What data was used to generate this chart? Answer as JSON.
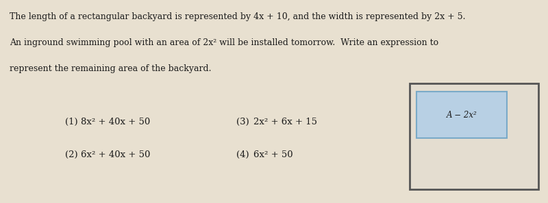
{
  "background_color": "#e8e0d0",
  "title_lines": [
    "The length of a rectangular backyard is represented by 4x + 10, and the width is represented by 2x + 5.",
    "An inground swimming pool with an area of 2x² will be installed tomorrow.  Write an expression to",
    "represent the remaining area of the backyard."
  ],
  "choices": [
    {
      "num": "(1)",
      "expr": "8x² + 40x + 50"
    },
    {
      "num": "(2)",
      "expr": "6x² + 40x + 50"
    },
    {
      "num": "(3)",
      "expr": "2x² + 6x + 15"
    },
    {
      "num": "(4)",
      "expr": "6x² + 50"
    }
  ],
  "diagram_label": "A − 2x²",
  "outer_box_edge": "#555555",
  "outer_box_face": "#e4ddd0",
  "inner_box_edge": "#7aaac8",
  "inner_box_face": "#b8d0e4",
  "text_color": "#1a1a1a",
  "figwidth": 8.0,
  "figheight": 2.97,
  "dpi": 100,
  "text_fontsize": 9.0,
  "choice_fontsize": 9.5
}
